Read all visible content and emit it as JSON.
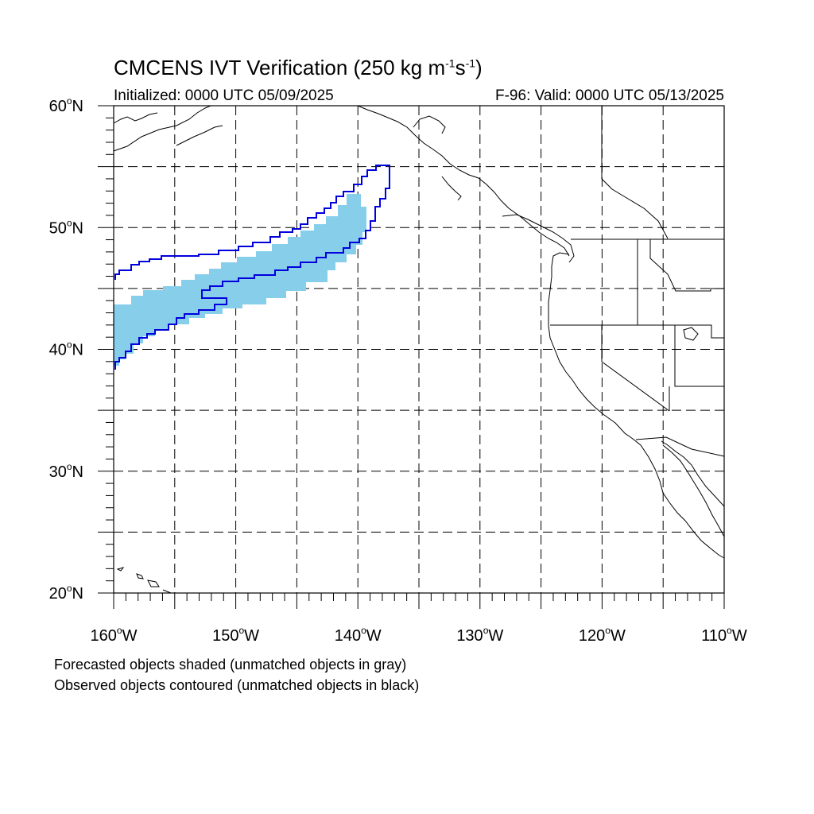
{
  "header": {
    "title_main": "CMCENS IVT Verification (250 kg m",
    "title_sup1": "-1",
    "title_mid": "s",
    "title_sup2": "-1",
    "title_end": ")",
    "initialized": "Initialized: 0000 UTC 05/09/2025",
    "valid": "F-96: Valid: 0000 UTC 05/13/2025"
  },
  "axes": {
    "lat_labels": [
      {
        "deg": "60",
        "suffix": "N"
      },
      {
        "deg": "50",
        "suffix": "N"
      },
      {
        "deg": "40",
        "suffix": "N"
      },
      {
        "deg": "30",
        "suffix": "N"
      },
      {
        "deg": "20",
        "suffix": "N"
      }
    ],
    "lon_labels": [
      {
        "deg": "160",
        "suffix": "W"
      },
      {
        "deg": "150",
        "suffix": "W"
      },
      {
        "deg": "140",
        "suffix": "W"
      },
      {
        "deg": "130",
        "suffix": "W"
      },
      {
        "deg": "120",
        "suffix": "W"
      },
      {
        "deg": "110",
        "suffix": "W"
      }
    ],
    "lat_range": [
      20,
      60
    ],
    "lon_range": [
      -160,
      -110
    ]
  },
  "legend": {
    "forecast_caption": "Forecasted objects shaded (unmatched objects in gray)",
    "observed_caption": "Observed objects contoured (unmatched objects in black)"
  },
  "colors": {
    "forecast_fill": "#87ceeb",
    "observed_contour": "#0000dd",
    "grid": "#000000",
    "coast": "#000000"
  }
}
